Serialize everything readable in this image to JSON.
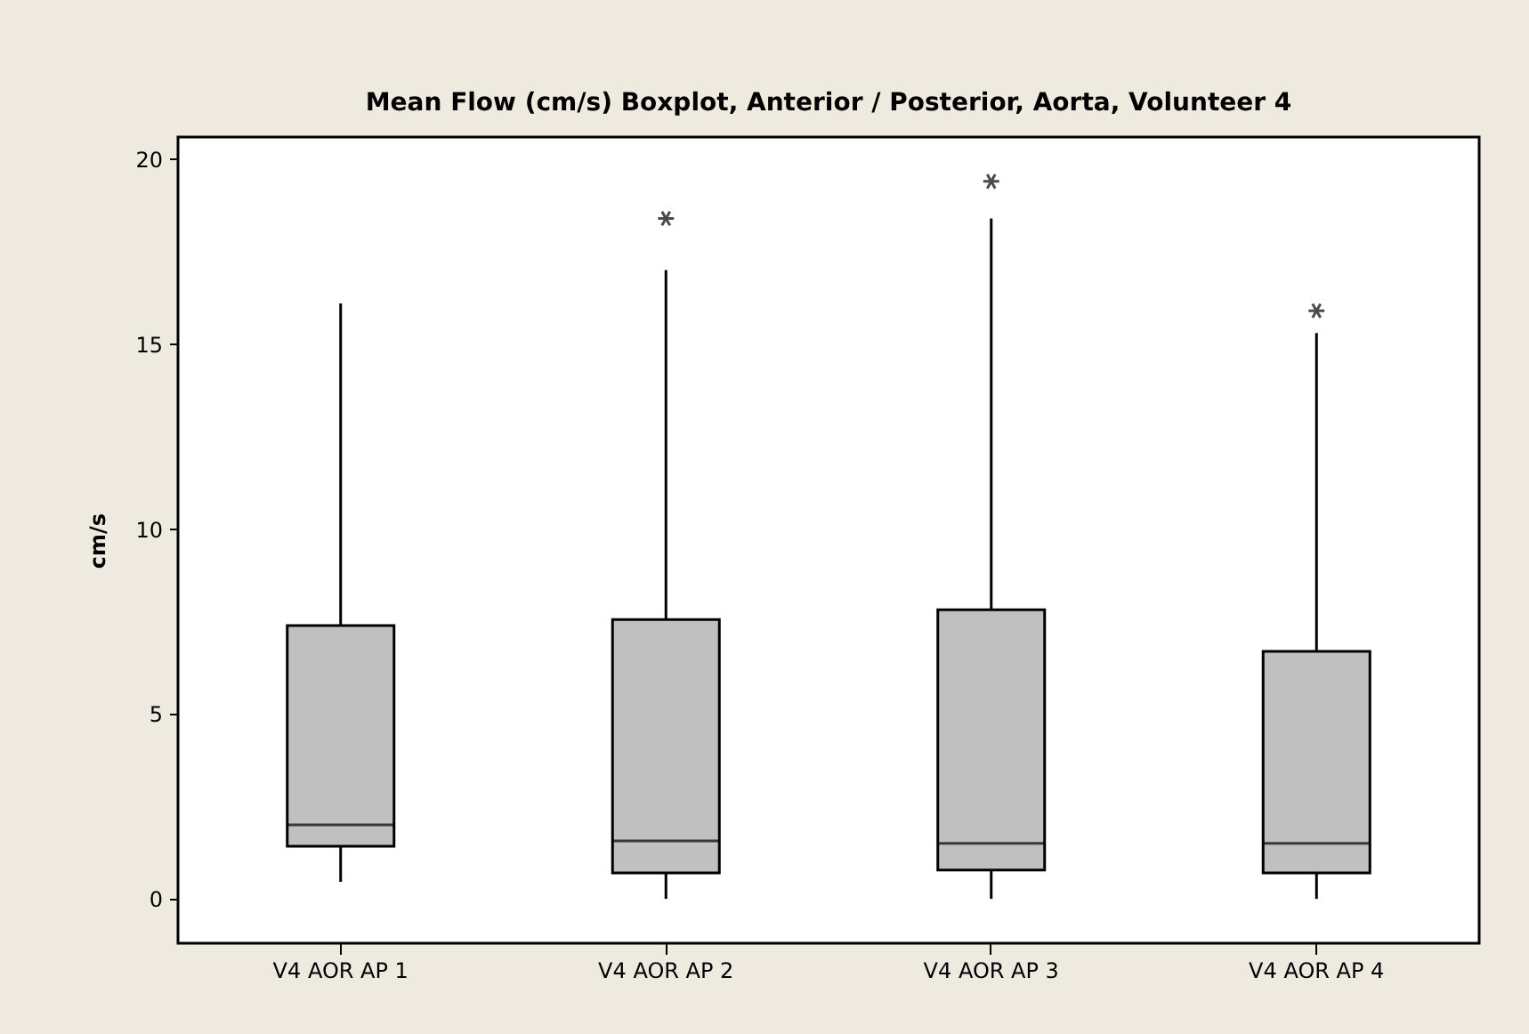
{
  "chart_data": {
    "type": "box",
    "title": "Mean Flow (cm/s) Boxplot, Anterior / Posterior, Aorta, Volunteer 4",
    "ylabel": "cm/s",
    "categories": [
      "V4 AOR AP 1",
      "V4 AOR AP 2",
      "V4 AOR AP 3",
      "V4 AOR AP 4"
    ],
    "boxes": [
      {
        "low": 0.46,
        "q1": 1.42,
        "median": 2.0,
        "q3": 7.39,
        "high": 16.1
      },
      {
        "low": 0,
        "q1": 0.7,
        "median": 1.57,
        "q3": 7.55,
        "high": 17.0,
        "outliers": [
          18.4
        ]
      },
      {
        "low": 0,
        "q1": 0.78,
        "median": 1.5,
        "q3": 7.82,
        "high": 18.4,
        "outliers": [
          19.4
        ]
      },
      {
        "low": 0,
        "q1": 0.7,
        "median": 1.5,
        "q3": 6.69,
        "high": 15.3,
        "outliers": [
          15.9
        ]
      }
    ],
    "color": "#c0c0c0",
    "ylim": [
      -1.2,
      20.6
    ],
    "yticks": [
      0,
      5,
      10,
      15,
      20
    ],
    "grid": false
  }
}
